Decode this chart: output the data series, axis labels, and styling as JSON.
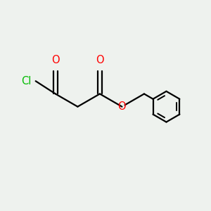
{
  "bg_color": "#eef2ee",
  "bond_color": "#000000",
  "cl_color": "#00bb00",
  "o_color": "#ff0000",
  "line_width": 1.6,
  "font_size": 10.5,
  "fig_size": [
    3.0,
    3.0
  ],
  "dpi": 100,
  "xlim": [
    -1.15,
    3.3
  ],
  "ylim": [
    -1.35,
    0.85
  ]
}
